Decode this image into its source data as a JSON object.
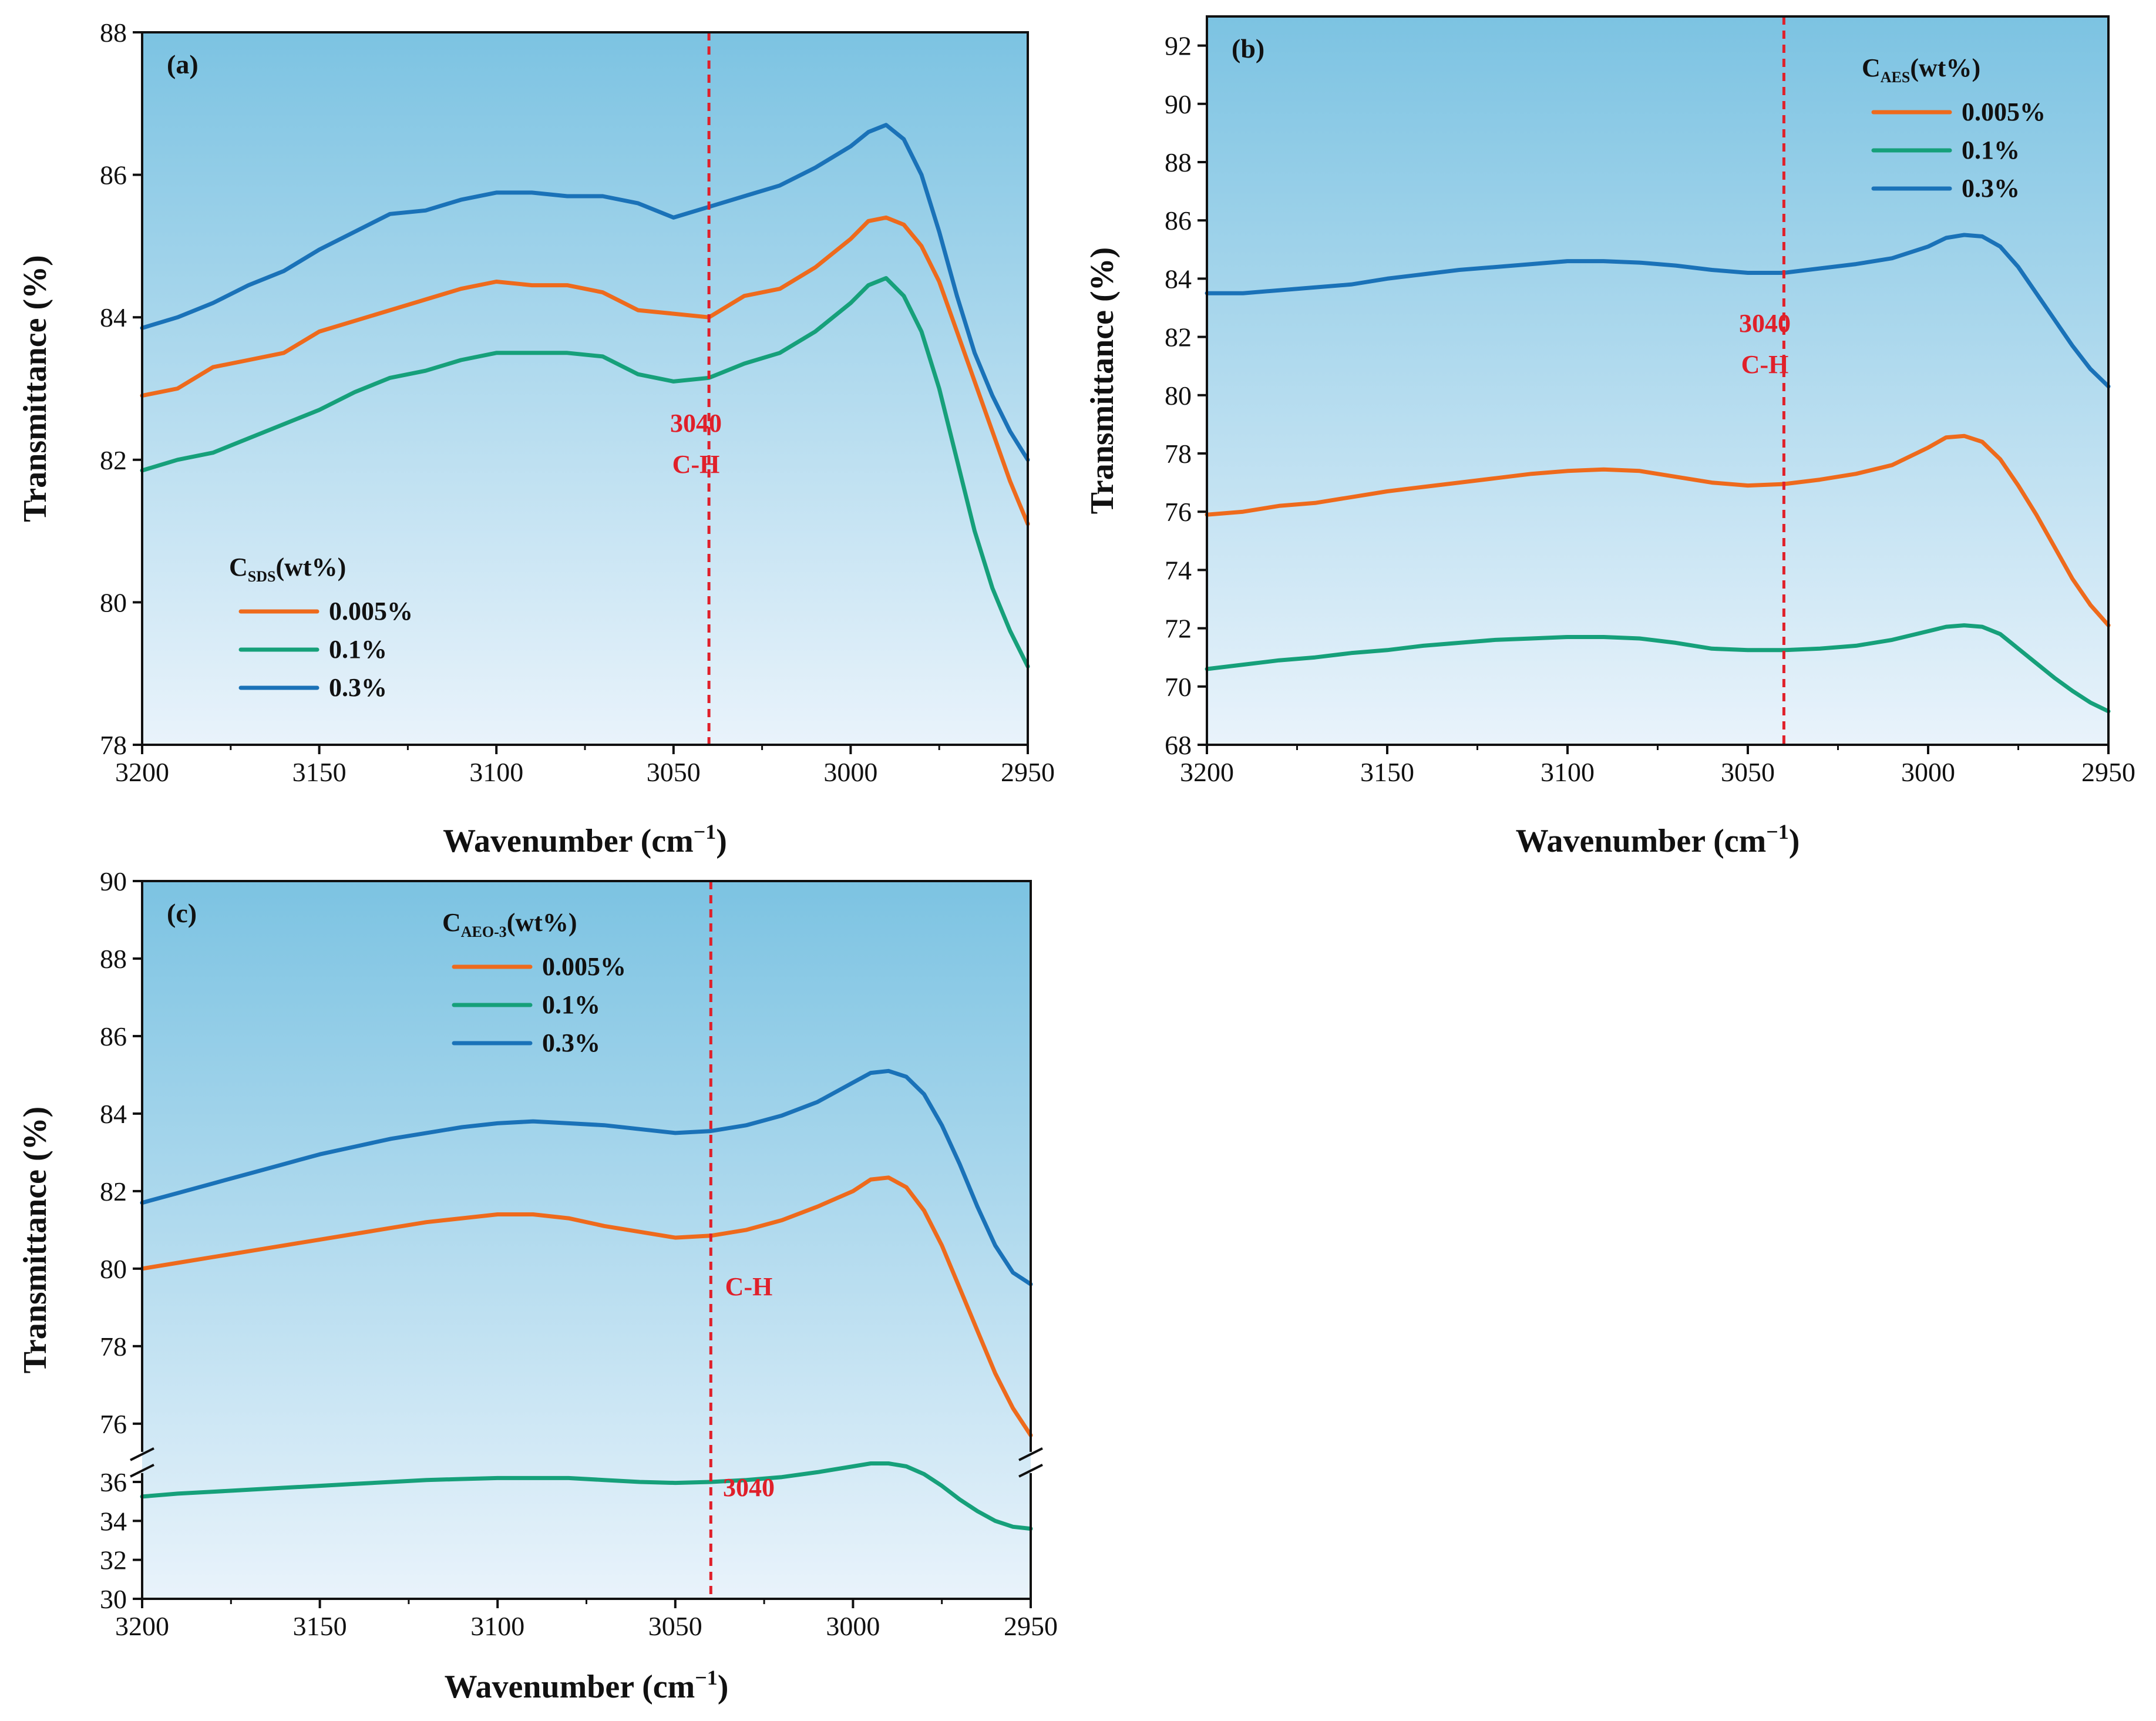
{
  "colors": {
    "orange": "#ee6a1c",
    "green": "#16a07a",
    "blue": "#1a72b8",
    "marker": "#e0202a",
    "bg_top": "#7cc3e2",
    "bg_bottom": "#e9f3fb"
  },
  "chart_data": [
    {
      "type": "line",
      "panel_label": "(a)",
      "xlabel_main": "Wavenumber (cm",
      "xlabel_sup": "−1",
      "xlabel_end": ")",
      "ylabel": "Transmittance (%)",
      "xlim": [
        3200,
        2950
      ],
      "ylim": [
        78,
        88
      ],
      "xticks": [
        "3200",
        "3150",
        "3100",
        "3050",
        "3000",
        "2950"
      ],
      "yticks": [
        "78",
        "80",
        "82",
        "84",
        "86",
        "88"
      ],
      "legend_title": "C",
      "legend_sub": "SDS",
      "legend_unit": "(wt%)",
      "marker_x": 3040,
      "annotation_value": "3040",
      "annotation_text": "C-H",
      "series": [
        {
          "name": "0.005%",
          "color": "orange",
          "x": [
            3200,
            3190,
            3180,
            3170,
            3160,
            3150,
            3140,
            3130,
            3120,
            3110,
            3100,
            3090,
            3080,
            3070,
            3060,
            3050,
            3040,
            3030,
            3020,
            3010,
            3000,
            2995,
            2990,
            2985,
            2980,
            2975,
            2970,
            2965,
            2960,
            2955,
            2950
          ],
          "y": [
            82.9,
            83.0,
            83.3,
            83.4,
            83.5,
            83.8,
            83.95,
            84.1,
            84.25,
            84.4,
            84.5,
            84.45,
            84.45,
            84.35,
            84.1,
            84.05,
            84.0,
            84.3,
            84.4,
            84.7,
            85.1,
            85.35,
            85.4,
            85.3,
            85.0,
            84.5,
            83.8,
            83.1,
            82.4,
            81.7,
            81.1
          ]
        },
        {
          "name": "0.1%",
          "color": "green",
          "x": [
            3200,
            3190,
            3180,
            3170,
            3160,
            3150,
            3140,
            3130,
            3120,
            3110,
            3100,
            3090,
            3080,
            3070,
            3060,
            3050,
            3040,
            3030,
            3020,
            3010,
            3000,
            2995,
            2990,
            2985,
            2980,
            2975,
            2970,
            2965,
            2960,
            2955,
            2950
          ],
          "y": [
            81.85,
            82.0,
            82.1,
            82.3,
            82.5,
            82.7,
            82.95,
            83.15,
            83.25,
            83.4,
            83.5,
            83.5,
            83.5,
            83.45,
            83.2,
            83.1,
            83.15,
            83.35,
            83.5,
            83.8,
            84.2,
            84.45,
            84.55,
            84.3,
            83.8,
            83.0,
            82.0,
            81.0,
            80.2,
            79.6,
            79.1
          ]
        },
        {
          "name": "0.3%",
          "color": "blue",
          "x": [
            3200,
            3190,
            3180,
            3170,
            3160,
            3150,
            3140,
            3130,
            3120,
            3110,
            3100,
            3090,
            3080,
            3070,
            3060,
            3050,
            3040,
            3030,
            3020,
            3010,
            3000,
            2995,
            2990,
            2985,
            2980,
            2975,
            2970,
            2965,
            2960,
            2955,
            2950
          ],
          "y": [
            83.85,
            84.0,
            84.2,
            84.45,
            84.65,
            84.95,
            85.2,
            85.45,
            85.5,
            85.65,
            85.75,
            85.75,
            85.7,
            85.7,
            85.6,
            85.4,
            85.55,
            85.7,
            85.85,
            86.1,
            86.4,
            86.6,
            86.7,
            86.5,
            86.0,
            85.2,
            84.3,
            83.5,
            82.9,
            82.4,
            82.0
          ]
        }
      ]
    },
    {
      "type": "line",
      "panel_label": "(b)",
      "xlabel_main": "Wavenumber (cm",
      "xlabel_sup": "−1",
      "xlabel_end": ")",
      "ylabel": "Transmittance (%)",
      "xlim": [
        3200,
        2950
      ],
      "ylim": [
        68,
        93
      ],
      "xticks": [
        "3200",
        "3150",
        "3100",
        "3050",
        "3000",
        "2950"
      ],
      "yticks": [
        "68",
        "70",
        "72",
        "74",
        "76",
        "78",
        "80",
        "82",
        "84",
        "86",
        "88",
        "90",
        "92"
      ],
      "legend_title": "C",
      "legend_sub": "AES",
      "legend_unit": "(wt%)",
      "marker_x": 3040,
      "annotation_value": "3040",
      "annotation_text": "C-H",
      "series": [
        {
          "name": "0.005%",
          "color": "orange",
          "x": [
            3200,
            3190,
            3180,
            3170,
            3160,
            3150,
            3140,
            3130,
            3120,
            3110,
            3100,
            3090,
            3080,
            3070,
            3060,
            3050,
            3040,
            3030,
            3020,
            3010,
            3000,
            2995,
            2990,
            2985,
            2980,
            2975,
            2970,
            2965,
            2960,
            2955,
            2950
          ],
          "y": [
            75.9,
            76.0,
            76.2,
            76.3,
            76.5,
            76.7,
            76.85,
            77.0,
            77.15,
            77.3,
            77.4,
            77.45,
            77.4,
            77.2,
            77.0,
            76.9,
            76.95,
            77.1,
            77.3,
            77.6,
            78.2,
            78.55,
            78.6,
            78.4,
            77.8,
            76.9,
            75.9,
            74.8,
            73.7,
            72.8,
            72.1
          ]
        },
        {
          "name": "0.1%",
          "color": "green",
          "x": [
            3200,
            3190,
            3180,
            3170,
            3160,
            3150,
            3140,
            3130,
            3120,
            3110,
            3100,
            3090,
            3080,
            3070,
            3060,
            3050,
            3040,
            3030,
            3020,
            3010,
            3000,
            2995,
            2990,
            2985,
            2980,
            2975,
            2970,
            2965,
            2960,
            2955,
            2950
          ],
          "y": [
            70.6,
            70.75,
            70.9,
            71.0,
            71.15,
            71.25,
            71.4,
            71.5,
            71.6,
            71.65,
            71.7,
            71.7,
            71.65,
            71.5,
            71.3,
            71.25,
            71.25,
            71.3,
            71.4,
            71.6,
            71.9,
            72.05,
            72.1,
            72.05,
            71.8,
            71.3,
            70.8,
            70.3,
            69.85,
            69.45,
            69.15
          ]
        },
        {
          "name": "0.3%",
          "color": "blue",
          "x": [
            3200,
            3190,
            3180,
            3170,
            3160,
            3150,
            3140,
            3130,
            3120,
            3110,
            3100,
            3090,
            3080,
            3070,
            3060,
            3050,
            3040,
            3030,
            3020,
            3010,
            3000,
            2995,
            2990,
            2985,
            2980,
            2975,
            2970,
            2965,
            2960,
            2955,
            2950
          ],
          "y": [
            83.5,
            83.5,
            83.6,
            83.7,
            83.8,
            84.0,
            84.15,
            84.3,
            84.4,
            84.5,
            84.6,
            84.6,
            84.55,
            84.45,
            84.3,
            84.2,
            84.2,
            84.35,
            84.5,
            84.7,
            85.1,
            85.4,
            85.5,
            85.45,
            85.1,
            84.4,
            83.5,
            82.6,
            81.7,
            80.9,
            80.3
          ]
        }
      ]
    },
    {
      "type": "line",
      "panel_label": "(c)",
      "xlabel_main": "Wavenumber (cm",
      "xlabel_sup": "−1",
      "xlabel_end": ")",
      "ylabel": "Transmittance (%)",
      "xlim": [
        3200,
        2950
      ],
      "ylim": [
        30,
        90
      ],
      "axis_break": {
        "lower": [
          30,
          37
        ],
        "upper": [
          75,
          90
        ]
      },
      "xticks": [
        "3200",
        "3150",
        "3100",
        "3050",
        "3000",
        "2950"
      ],
      "yticks_lower": [
        "30",
        "32",
        "34",
        "36"
      ],
      "yticks_upper": [
        "76",
        "78",
        "80",
        "82",
        "84",
        "86",
        "88",
        "90"
      ],
      "legend_title": "C",
      "legend_sub": "AEO-3",
      "legend_unit": "(wt%)",
      "marker_x": 3040,
      "annotation_value": "3040",
      "annotation_text": "C-H",
      "series": [
        {
          "name": "0.005%",
          "color": "orange",
          "x": [
            3200,
            3190,
            3180,
            3170,
            3160,
            3150,
            3140,
            3130,
            3120,
            3110,
            3100,
            3090,
            3080,
            3070,
            3060,
            3050,
            3040,
            3030,
            3020,
            3010,
            3000,
            2995,
            2990,
            2985,
            2980,
            2975,
            2970,
            2965,
            2960,
            2955,
            2950
          ],
          "y": [
            80.0,
            80.15,
            80.3,
            80.45,
            80.6,
            80.75,
            80.9,
            81.05,
            81.2,
            81.3,
            81.4,
            81.4,
            81.3,
            81.1,
            80.95,
            80.8,
            80.85,
            81.0,
            81.25,
            81.6,
            82.0,
            82.3,
            82.35,
            82.1,
            81.5,
            80.6,
            79.5,
            78.4,
            77.3,
            76.4,
            75.7
          ]
        },
        {
          "name": "0.1%",
          "color": "green",
          "x": [
            3200,
            3190,
            3180,
            3170,
            3160,
            3150,
            3140,
            3130,
            3120,
            3110,
            3100,
            3090,
            3080,
            3070,
            3060,
            3050,
            3040,
            3030,
            3020,
            3010,
            3000,
            2995,
            2990,
            2985,
            2980,
            2975,
            2970,
            2965,
            2960,
            2955,
            2950
          ],
          "y": [
            35.25,
            35.4,
            35.5,
            35.6,
            35.7,
            35.8,
            35.9,
            36.0,
            36.1,
            36.15,
            36.2,
            36.2,
            36.2,
            36.1,
            36.0,
            35.95,
            36.0,
            36.1,
            36.25,
            36.5,
            36.8,
            36.95,
            36.95,
            36.8,
            36.4,
            35.8,
            35.1,
            34.5,
            34.0,
            33.7,
            33.6
          ]
        },
        {
          "name": "0.3%",
          "color": "blue",
          "x": [
            3200,
            3190,
            3180,
            3170,
            3160,
            3150,
            3140,
            3130,
            3120,
            3110,
            3100,
            3090,
            3080,
            3070,
            3060,
            3050,
            3040,
            3030,
            3020,
            3010,
            3000,
            2995,
            2990,
            2985,
            2980,
            2975,
            2970,
            2965,
            2960,
            2955,
            2950
          ],
          "y": [
            81.7,
            81.95,
            82.2,
            82.45,
            82.7,
            82.95,
            83.15,
            83.35,
            83.5,
            83.65,
            83.75,
            83.8,
            83.75,
            83.7,
            83.6,
            83.5,
            83.55,
            83.7,
            83.95,
            84.3,
            84.8,
            85.05,
            85.1,
            84.95,
            84.5,
            83.7,
            82.7,
            81.6,
            80.6,
            79.9,
            79.6
          ]
        }
      ]
    }
  ]
}
